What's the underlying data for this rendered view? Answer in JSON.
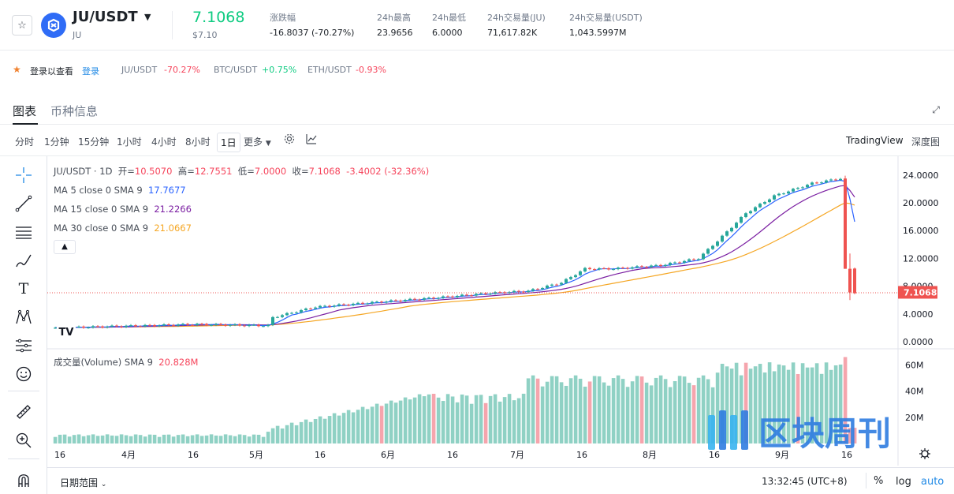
{
  "header": {
    "symbol": "JU/USDT",
    "sub": "JU",
    "last_price": "7.1068",
    "last_price_usd": "$7.10",
    "stats": [
      {
        "label": "涨跌幅",
        "value": "-16.8037 (-70.27%)",
        "color": "red"
      },
      {
        "label": "24h最高",
        "value": "23.9656"
      },
      {
        "label": "24h最低",
        "value": "6.0000"
      },
      {
        "label": "24h交易量(JU)",
        "value": "71,617.82K"
      },
      {
        "label": "24h交易量(USDT)",
        "value": "1,043.5997M"
      }
    ]
  },
  "strip": {
    "login_text": "登录以查看",
    "login_link": "登录",
    "tickers": [
      {
        "pair": "JU/USDT",
        "change": "-70.27%",
        "color": "red"
      },
      {
        "pair": "BTC/USDT",
        "change": "+0.75%",
        "color": "green"
      },
      {
        "pair": "ETH/USDT",
        "change": "-0.93%",
        "color": "red"
      }
    ]
  },
  "tabs": {
    "chart": "图表",
    "info": "币种信息"
  },
  "toolbar": {
    "intervals": [
      "分时",
      "1分钟",
      "15分钟",
      "1小时",
      "4小时",
      "8小时",
      "1日"
    ],
    "active_interval": "1日",
    "more": "更多",
    "tradingview": "TradingView",
    "depth": "深度图"
  },
  "legend": {
    "title": "JU/USDT · 1D",
    "open_label": "开=",
    "open": "10.5070",
    "high_label": "高=",
    "high": "12.7551",
    "low_label": "低=",
    "low": "7.0000",
    "close_label": "收=",
    "close": "7.1068",
    "change": "-3.4002 (-32.36%)",
    "ma5_label": "MA 5 close 0 SMA 9",
    "ma5": "17.7677",
    "ma15_label": "MA 15 close 0 SMA 9",
    "ma15": "21.2266",
    "ma30_label": "MA 30 close 0 SMA 9",
    "ma30": "21.0667",
    "volume_label": "成交量(Volume) SMA 9",
    "volume": "20.828M"
  },
  "price_axis": [
    "24.0000",
    "20.0000",
    "16.0000",
    "12.0000",
    "8.0000",
    "4.0000",
    "0.0000"
  ],
  "price_tag": "7.1068",
  "volume_axis": [
    "60M",
    "40M",
    "20M"
  ],
  "time_axis": [
    "16",
    "4月",
    "16",
    "5月",
    "16",
    "6月",
    "16",
    "7月",
    "16",
    "8月",
    "16",
    "9月",
    "16"
  ],
  "bottom": {
    "range": "日期范围",
    "time": "13:32:45 (UTC+8)",
    "percent": "%",
    "log": "log",
    "auto": "auto"
  },
  "watermark": "区块周刊",
  "colors": {
    "up": "#26a69a",
    "down": "#ef5350",
    "ma5": "#2962ff",
    "ma15": "#7b1fa2",
    "ma30": "#f5a623",
    "vol_up": "#8fd1c4",
    "vol_down": "#f5a5ad",
    "accent_blue": "#1e88e5"
  }
}
